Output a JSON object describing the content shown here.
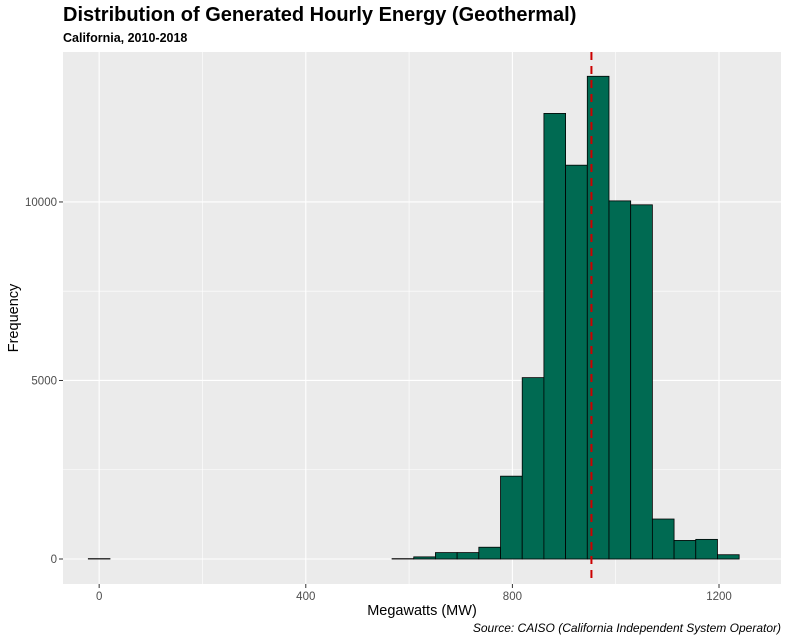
{
  "header": {
    "title": "Distribution of Generated Hourly Energy (Geothermal)",
    "subtitle": "California, 2010-2018"
  },
  "footer": {
    "caption": "Source: CAISO (California Independent System Operator)"
  },
  "colors": {
    "panel_background": "#ebebeb",
    "gridline": "#ffffff",
    "bar_fill": "#006a52",
    "bar_outline": "#000000",
    "reference_line": "#cc0000"
  },
  "chart_data": {
    "type": "bar",
    "title": "Distribution of Generated Hourly Energy (Geothermal)",
    "subtitle": "California, 2010-2018",
    "xlabel": "Megawatts (MW)",
    "ylabel": "Frequency",
    "xlim": [
      -70,
      1320
    ],
    "ylim": [
      -700,
      14200
    ],
    "x_ticks": [
      0,
      400,
      800,
      1200
    ],
    "y_ticks": [
      0,
      5000,
      10000
    ],
    "grid": true,
    "bin_width": 42,
    "bins": [
      {
        "x0": -21,
        "x1": 21,
        "count": 10
      },
      {
        "x0": 21,
        "x1": 63,
        "count": 0
      },
      {
        "x0": 63,
        "x1": 105,
        "count": 0
      },
      {
        "x0": 105,
        "x1": 147,
        "count": 0
      },
      {
        "x0": 147,
        "x1": 189,
        "count": 0
      },
      {
        "x0": 189,
        "x1": 231,
        "count": 0
      },
      {
        "x0": 231,
        "x1": 273,
        "count": 0
      },
      {
        "x0": 273,
        "x1": 315,
        "count": 0
      },
      {
        "x0": 315,
        "x1": 357,
        "count": 0
      },
      {
        "x0": 357,
        "x1": 399,
        "count": 0
      },
      {
        "x0": 399,
        "x1": 441,
        "count": 0
      },
      {
        "x0": 441,
        "x1": 483,
        "count": 0
      },
      {
        "x0": 483,
        "x1": 525,
        "count": 0
      },
      {
        "x0": 525,
        "x1": 567,
        "count": 0
      },
      {
        "x0": 567,
        "x1": 609,
        "count": 10
      },
      {
        "x0": 609,
        "x1": 651,
        "count": 60
      },
      {
        "x0": 651,
        "x1": 693,
        "count": 180
      },
      {
        "x0": 693,
        "x1": 735,
        "count": 180
      },
      {
        "x0": 735,
        "x1": 777,
        "count": 330
      },
      {
        "x0": 777,
        "x1": 819,
        "count": 2320
      },
      {
        "x0": 819,
        "x1": 861,
        "count": 5080
      },
      {
        "x0": 861,
        "x1": 903,
        "count": 12480
      },
      {
        "x0": 903,
        "x1": 945,
        "count": 11030
      },
      {
        "x0": 945,
        "x1": 987,
        "count": 13520
      },
      {
        "x0": 987,
        "x1": 1029,
        "count": 10030
      },
      {
        "x0": 1029,
        "x1": 1071,
        "count": 9920
      },
      {
        "x0": 1071,
        "x1": 1113,
        "count": 1120
      },
      {
        "x0": 1113,
        "x1": 1155,
        "count": 520
      },
      {
        "x0": 1155,
        "x1": 1197,
        "count": 550
      },
      {
        "x0": 1197,
        "x1": 1239,
        "count": 120
      }
    ],
    "reference_line": {
      "x": 953,
      "style": "dashed"
    },
    "caption": "Source: CAISO (California Independent System Operator)"
  }
}
